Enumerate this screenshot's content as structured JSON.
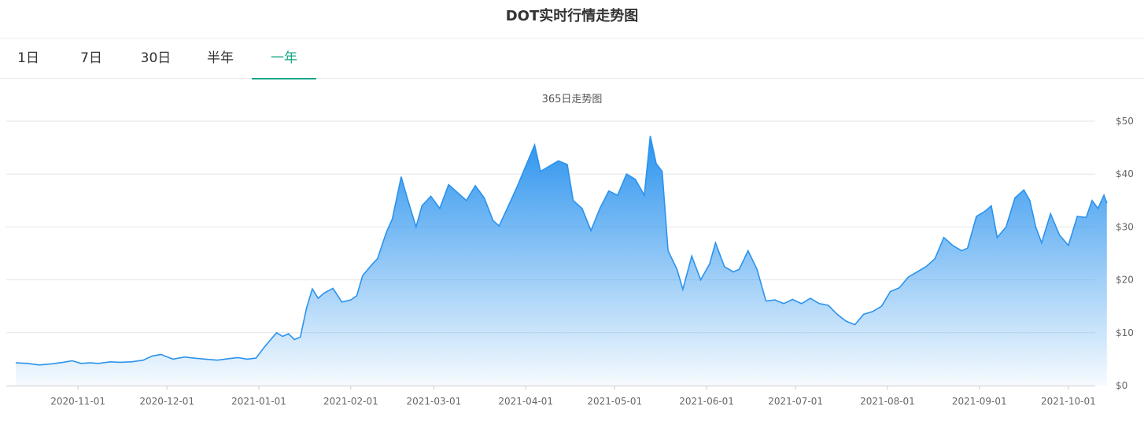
{
  "title": "DOT实时行情走势图",
  "tabs": [
    {
      "label": "1日"
    },
    {
      "label": "7日"
    },
    {
      "label": "30日"
    },
    {
      "label": "半年"
    },
    {
      "label": "一年"
    }
  ],
  "active_tab": 4,
  "accent_color": "#17a689",
  "line_color": "#2b93ee",
  "chart_data": {
    "type": "area",
    "subtitle": "365日走势图",
    "x_ticks": [
      "2020-11-01",
      "2020-12-01",
      "2021-01-01",
      "2021-02-01",
      "2021-03-01",
      "2021-04-01",
      "2021-05-01",
      "2021-06-01",
      "2021-07-01",
      "2021-08-01",
      "2021-09-01",
      "2021-10-01"
    ],
    "y_ticks": [
      "$0",
      "$10",
      "$20",
      "$30",
      "$40",
      "$50"
    ],
    "ylim": [
      0,
      50
    ],
    "xlim": [
      "2020-10-11",
      "2021-10-09"
    ],
    "y_axis_position": "right",
    "grid": true,
    "series": [
      {
        "points": [
          [
            "2020-10-11",
            4.3
          ],
          [
            "2020-10-15",
            4.2
          ],
          [
            "2020-10-19",
            3.9
          ],
          [
            "2020-10-23",
            4.1
          ],
          [
            "2020-10-27",
            4.4
          ],
          [
            "2020-10-30",
            4.7
          ],
          [
            "2020-11-02",
            4.2
          ],
          [
            "2020-11-05",
            4.3
          ],
          [
            "2020-11-08",
            4.2
          ],
          [
            "2020-11-12",
            4.5
          ],
          [
            "2020-11-15",
            4.4
          ],
          [
            "2020-11-19",
            4.5
          ],
          [
            "2020-11-23",
            4.8
          ],
          [
            "2020-11-26",
            5.6
          ],
          [
            "2020-11-29",
            5.9
          ],
          [
            "2020-12-03",
            5.0
          ],
          [
            "2020-12-07",
            5.4
          ],
          [
            "2020-12-10",
            5.2
          ],
          [
            "2020-12-14",
            5.0
          ],
          [
            "2020-12-18",
            4.8
          ],
          [
            "2020-12-22",
            5.1
          ],
          [
            "2020-12-25",
            5.3
          ],
          [
            "2020-12-28",
            5.0
          ],
          [
            "2020-12-31",
            5.2
          ],
          [
            "2021-01-03",
            7.4
          ],
          [
            "2021-01-05",
            8.7
          ],
          [
            "2021-01-07",
            10.0
          ],
          [
            "2021-01-09",
            9.3
          ],
          [
            "2021-01-11",
            9.8
          ],
          [
            "2021-01-13",
            8.7
          ],
          [
            "2021-01-15",
            9.2
          ],
          [
            "2021-01-17",
            14.5
          ],
          [
            "2021-01-19",
            18.3
          ],
          [
            "2021-01-21",
            16.5
          ],
          [
            "2021-01-23",
            17.5
          ],
          [
            "2021-01-26",
            18.4
          ],
          [
            "2021-01-29",
            15.8
          ],
          [
            "2021-02-01",
            16.2
          ],
          [
            "2021-02-03",
            17.0
          ],
          [
            "2021-02-05",
            20.8
          ],
          [
            "2021-02-08",
            22.8
          ],
          [
            "2021-02-10",
            24.0
          ],
          [
            "2021-02-13",
            29.0
          ],
          [
            "2021-02-15",
            31.5
          ],
          [
            "2021-02-18",
            39.5
          ],
          [
            "2021-02-20",
            35.5
          ],
          [
            "2021-02-23",
            30.0
          ],
          [
            "2021-02-25",
            34.0
          ],
          [
            "2021-02-28",
            35.8
          ],
          [
            "2021-03-03",
            33.5
          ],
          [
            "2021-03-06",
            38.0
          ],
          [
            "2021-03-09",
            36.5
          ],
          [
            "2021-03-12",
            35.0
          ],
          [
            "2021-03-15",
            37.8
          ],
          [
            "2021-03-18",
            35.5
          ],
          [
            "2021-03-21",
            31.2
          ],
          [
            "2021-03-23",
            30.2
          ],
          [
            "2021-03-26",
            33.8
          ],
          [
            "2021-03-29",
            37.5
          ],
          [
            "2021-04-01",
            41.5
          ],
          [
            "2021-04-04",
            45.5
          ],
          [
            "2021-04-06",
            40.5
          ],
          [
            "2021-04-09",
            41.5
          ],
          [
            "2021-04-12",
            42.5
          ],
          [
            "2021-04-15",
            41.8
          ],
          [
            "2021-04-17",
            35.0
          ],
          [
            "2021-04-20",
            33.5
          ],
          [
            "2021-04-23",
            29.3
          ],
          [
            "2021-04-26",
            33.5
          ],
          [
            "2021-04-29",
            36.8
          ],
          [
            "2021-05-02",
            36.0
          ],
          [
            "2021-05-05",
            40.0
          ],
          [
            "2021-05-08",
            39.0
          ],
          [
            "2021-05-11",
            36.0
          ],
          [
            "2021-05-13",
            47.2
          ],
          [
            "2021-05-15",
            42.0
          ],
          [
            "2021-05-17",
            40.5
          ],
          [
            "2021-05-19",
            25.5
          ],
          [
            "2021-05-22",
            22.0
          ],
          [
            "2021-05-24",
            18.2
          ],
          [
            "2021-05-27",
            24.5
          ],
          [
            "2021-05-30",
            20.0
          ],
          [
            "2021-06-02",
            23.0
          ],
          [
            "2021-06-04",
            27.0
          ],
          [
            "2021-06-07",
            22.5
          ],
          [
            "2021-06-10",
            21.5
          ],
          [
            "2021-06-12",
            22.0
          ],
          [
            "2021-06-15",
            25.5
          ],
          [
            "2021-06-18",
            22.0
          ],
          [
            "2021-06-21",
            16.0
          ],
          [
            "2021-06-24",
            16.2
          ],
          [
            "2021-06-27",
            15.5
          ],
          [
            "2021-06-30",
            16.3
          ],
          [
            "2021-07-03",
            15.5
          ],
          [
            "2021-07-06",
            16.5
          ],
          [
            "2021-07-09",
            15.5
          ],
          [
            "2021-07-12",
            15.2
          ],
          [
            "2021-07-15",
            13.5
          ],
          [
            "2021-07-18",
            12.2
          ],
          [
            "2021-07-21",
            11.5
          ],
          [
            "2021-07-24",
            13.5
          ],
          [
            "2021-07-27",
            14.0
          ],
          [
            "2021-07-30",
            15.0
          ],
          [
            "2021-08-02",
            17.8
          ],
          [
            "2021-08-05",
            18.5
          ],
          [
            "2021-08-08",
            20.5
          ],
          [
            "2021-08-11",
            21.5
          ],
          [
            "2021-08-14",
            22.5
          ],
          [
            "2021-08-17",
            24.0
          ],
          [
            "2021-08-20",
            28.0
          ],
          [
            "2021-08-23",
            26.5
          ],
          [
            "2021-08-26",
            25.5
          ],
          [
            "2021-08-28",
            26.0
          ],
          [
            "2021-08-31",
            32.0
          ],
          [
            "2021-09-03",
            33.0
          ],
          [
            "2021-09-05",
            34.0
          ],
          [
            "2021-09-07",
            28.0
          ],
          [
            "2021-09-10",
            30.0
          ],
          [
            "2021-09-13",
            35.5
          ],
          [
            "2021-09-16",
            37.0
          ],
          [
            "2021-09-18",
            35.0
          ],
          [
            "2021-09-20",
            30.0
          ],
          [
            "2021-09-22",
            27.0
          ],
          [
            "2021-09-25",
            32.5
          ],
          [
            "2021-09-28",
            28.5
          ],
          [
            "2021-10-01",
            26.5
          ],
          [
            "2021-10-04",
            32.0
          ],
          [
            "2021-10-07",
            31.8
          ],
          [
            "2021-10-09",
            35.0
          ],
          [
            "2021-10-11",
            33.5
          ],
          [
            "2021-10-13",
            36.0
          ],
          [
            "2021-10-14",
            34.5
          ]
        ]
      }
    ]
  }
}
